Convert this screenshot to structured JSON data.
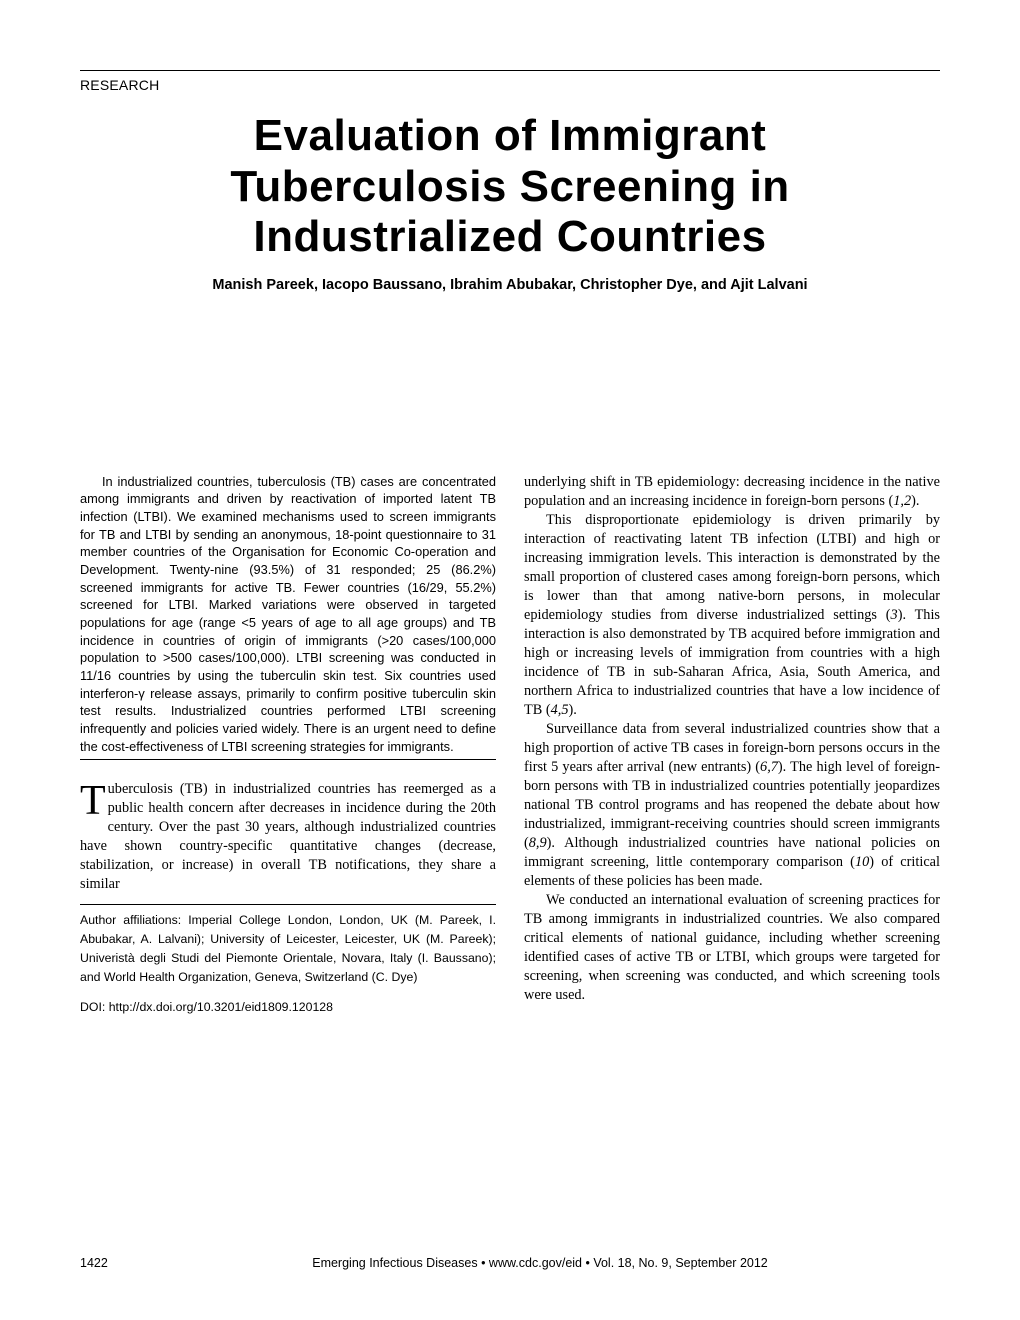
{
  "section_label": "RESEARCH",
  "title_line1": "Evaluation of Immigrant",
  "title_line2": "Tuberculosis Screening in",
  "title_line3": "Industrialized Countries",
  "authors": "Manish Pareek, Iacopo Baussano, Ibrahim Abubakar, Christopher Dye, and Ajit Lalvani",
  "abstract": "In industrialized countries, tuberculosis (TB) cases are concentrated among immigrants and driven by reactivation of imported latent TB infection (LTBI). We examined mechanisms used to screen immigrants for TB and LTBI by sending an anonymous, 18-point questionnaire to 31 member countries of the Organisation for Economic Co-operation and Development. Twenty-nine (93.5%) of 31 responded; 25 (86.2%) screened immigrants for active TB. Fewer countries (16/29, 55.2%) screened for LTBI. Marked variations were observed in targeted populations for age (range <5 years of age to all age groups) and TB incidence in countries of origin of immigrants (>20 cases/100,000 population to >500 cases/100,000). LTBI screening was conducted in 11/16 countries by using the tuberculin skin test. Six countries used interferon-γ release assays, primarily to confirm positive tuberculin skin test results. Industrialized countries performed LTBI screening infrequently and policies varied widely. There is an urgent need to define the cost-effectiveness of LTBI screening strategies for immigrants.",
  "dropcap": "T",
  "intro_rest": "uberculosis (TB) in industrialized countries has reemerged as a public health concern after decreases in incidence during the 20th century. Over the past 30 years, although industrialized countries have shown country-specific quantitative changes (decrease, stabilization, or increase) in overall TB notifications, they share a similar",
  "affiliations": "Author affiliations: Imperial College London, London, UK (M. Pareek, I. Abubakar, A. Lalvani); University of Leicester, Leicester, UK (M. Pareek); Univeristà degli Studi del Piemonte Orientale, Novara, Italy (I. Baussano); and World Health Organization, Geneva, Switzerland (C. Dye)",
  "doi": "DOI: http://dx.doi.org/10.3201/eid1809.120128",
  "col2_p1": "underlying shift in TB epidemiology: decreasing incidence in the native population and an increasing incidence in foreign-born persons (1,2).",
  "col2_p2": "This disproportionate epidemiology is driven primarily by interaction of reactivating latent TB infection (LTBI) and high or increasing immigration levels. This interaction is demonstrated by the small proportion of clustered cases among foreign-born persons, which is lower than that among native-born persons, in molecular epidemiology studies from diverse industrialized settings (3). This interaction is also demonstrated by TB acquired before immigration and high or increasing levels of immigration from countries with a high incidence of TB in sub-Saharan Africa, Asia, South America, and northern Africa to industrialized countries that have a low incidence of TB (4,5).",
  "col2_p3": "Surveillance data from several industrialized countries show that a high proportion of active TB cases in foreign-born persons occurs in the first 5 years after arrival (new entrants) (6,7). The high level of foreign-born persons with TB in industrialized countries potentially jeopardizes national TB control programs and has reopened the debate about how industrialized, immigrant-receiving countries should screen immigrants (8,9). Although industrialized countries have national policies on immigrant screening, little contemporary comparison (10) of critical elements of these policies has been made.",
  "col2_p4": "We conducted an international evaluation of screening practices for TB among immigrants in industrialized countries. We also compared critical elements of national guidance, including whether screening identified cases of active TB or LTBI, which groups were targeted for screening, when screening was conducted, and which screening tools were used.",
  "footer_pagenum": "1422",
  "footer_journal": "Emerging Infectious Diseases • www.cdc.gov/eid • Vol. 18, No. 9, September 2012"
}
